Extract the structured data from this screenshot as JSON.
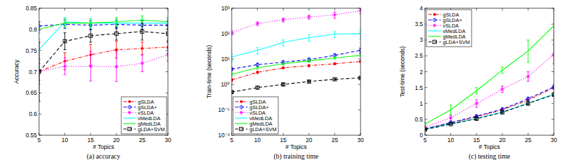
{
  "chart_data": [
    {
      "type": "line",
      "title": "(a)  accuracy",
      "x_label": "# Topics",
      "y_label": "Accuracy",
      "x": [
        5,
        10,
        15,
        20,
        25,
        30
      ],
      "xlim": [
        5,
        30
      ],
      "xticks": [
        5,
        10,
        15,
        20,
        25,
        30
      ],
      "ylim": [
        0.55,
        0.85
      ],
      "yticks": [
        0.55,
        0.6,
        0.65,
        0.7,
        0.75,
        0.8,
        0.85
      ],
      "grid": false,
      "legend": "lower right",
      "series": [
        {
          "name": "gSLDA",
          "color": "#ff0000",
          "line_style": "dashdot",
          "marker": "dot",
          "values": [
            0.7,
            0.725,
            0.74,
            0.752,
            0.755,
            0.758
          ],
          "errors": [
            0.02,
            0.02,
            0.025,
            0.02,
            0.015,
            0.015
          ]
        },
        {
          "name": "gSLDA+",
          "color": "#0000ff",
          "line_style": "dashed",
          "marker": "diamond",
          "values": [
            0.808,
            0.812,
            0.81,
            0.812,
            0.81,
            0.81
          ],
          "errors": [
            0.01,
            0.01,
            0.01,
            0.01,
            0.01,
            0.01
          ]
        },
        {
          "name": "vSLDA",
          "color": "#ff00ff",
          "line_style": "dotted",
          "marker": "star",
          "values": [
            0.7,
            0.713,
            0.713,
            0.712,
            0.72,
            0.74
          ],
          "errors": [
            0.03,
            0.02,
            0.035,
            0.035,
            0.02,
            0.015
          ]
        },
        {
          "name": "vMedLDA",
          "color": "#00ffff",
          "line_style": "solid",
          "marker": "none",
          "values": [
            0.752,
            0.818,
            0.815,
            0.815,
            0.815,
            0.815
          ],
          "errors": [
            0.025,
            0.01,
            0.01,
            0.01,
            0.01,
            0.01
          ]
        },
        {
          "name": "gMedLDA",
          "color": "#00ff00",
          "line_style": "solid",
          "marker": "none",
          "values": [
            0.8,
            0.815,
            0.815,
            0.818,
            0.822,
            0.818
          ],
          "errors": [
            0.01,
            0.01,
            0.01,
            0.01,
            0.01,
            0.01
          ]
        },
        {
          "name": "gLDA+SVM",
          "color": "#000000",
          "line_style": "dashed",
          "marker": "square",
          "values": [
            0.7,
            0.772,
            0.785,
            0.79,
            0.795,
            0.79
          ],
          "errors": [
            0.07,
            0.02,
            0.015,
            0.015,
            0.02,
            0.02
          ]
        }
      ]
    },
    {
      "type": "line",
      "title": "(b)  training time",
      "x_label": "# Topics",
      "y_label": "Train-time (seconds)",
      "x": [
        5,
        10,
        15,
        20,
        25,
        30
      ],
      "xlim": [
        5,
        30
      ],
      "xticks": [
        5,
        10,
        15,
        20,
        25,
        30
      ],
      "ylim": [
        0.01,
        1000
      ],
      "log": "y",
      "yticks": [
        {
          "value": 0.01,
          "label": "10⁻²"
        },
        {
          "value": 0.1,
          "label": "10⁻¹"
        },
        {
          "value": 1,
          "label": "10⁰"
        },
        {
          "value": 10,
          "label": "10¹"
        },
        {
          "value": 100,
          "label": "10²"
        },
        {
          "value": 1000,
          "label": "10³"
        }
      ],
      "grid": false,
      "legend": "lower left",
      "series": [
        {
          "name": "gSLDA",
          "color": "#ff0000",
          "line_style": "dashdot",
          "marker": "dot",
          "values": [
            1.5,
            3,
            4.5,
            5.5,
            6.5,
            8
          ],
          "errors": [
            0.2,
            0.3,
            0.4,
            0.5,
            0.6,
            0.7
          ]
        },
        {
          "name": "gSLDA+",
          "color": "#0000ff",
          "line_style": "dashed",
          "marker": "diamond",
          "values": [
            4,
            6,
            7.5,
            9.5,
            14,
            22
          ],
          "errors": [
            0.5,
            0.8,
            1,
            1.5,
            2,
            5
          ]
        },
        {
          "name": "vSLDA",
          "color": "#ff00ff",
          "line_style": "dotted",
          "marker": "star",
          "values": [
            110,
            250,
            350,
            450,
            550,
            800
          ],
          "errors": [
            20,
            40,
            60,
            80,
            150,
            200
          ]
        },
        {
          "name": "vMedLDA",
          "color": "#00ffff",
          "line_style": "solid",
          "marker": "none",
          "values": [
            12,
            22,
            45,
            70,
            95,
            100
          ],
          "errors": [
            4,
            6,
            12,
            20,
            25,
            40
          ]
        },
        {
          "name": "gMedLDA",
          "color": "#00ff00",
          "line_style": "solid",
          "marker": "none",
          "values": [
            2.5,
            4.5,
            6.5,
            8.5,
            11,
            14
          ],
          "errors": [
            0.3,
            0.5,
            0.7,
            1,
            1.2,
            1.5
          ]
        },
        {
          "name": "gLDA+SVM",
          "color": "#000000",
          "line_style": "dashed",
          "marker": "square",
          "values": [
            0.5,
            0.75,
            1,
            1.3,
            1.6,
            1.8
          ],
          "errors": [
            0.04,
            0.08,
            0.1,
            0.1,
            0.1,
            0.15
          ]
        }
      ]
    },
    {
      "type": "line",
      "title": "(c)  testing time",
      "x_label": "# Topics",
      "y_label": "Test-time (seconds)",
      "x": [
        5,
        10,
        15,
        20,
        25,
        30
      ],
      "xlim": [
        5,
        30
      ],
      "xticks": [
        5,
        10,
        15,
        20,
        25,
        30
      ],
      "ylim": [
        0,
        4
      ],
      "yticks": [
        0,
        0.5,
        1,
        1.5,
        2,
        2.5,
        3,
        3.5,
        4
      ],
      "grid": false,
      "legend": "upper left",
      "series": [
        {
          "name": "gSLDA",
          "color": "#ff0000",
          "line_style": "dashdot",
          "marker": "dot",
          "values": [
            0.2,
            0.38,
            0.58,
            0.8,
            1.1,
            1.5
          ],
          "errors": [
            0.02,
            0.03,
            0.03,
            0.04,
            0.05,
            0.05
          ]
        },
        {
          "name": "gSLDA+",
          "color": "#0000ff",
          "line_style": "dashed",
          "marker": "diamond",
          "values": [
            0.2,
            0.4,
            0.6,
            0.82,
            1.15,
            1.52
          ],
          "errors": [
            0.02,
            0.03,
            0.04,
            0.04,
            0.05,
            0.06
          ]
        },
        {
          "name": "vSLDA",
          "color": "#ff00ff",
          "line_style": "dotted",
          "marker": "star",
          "values": [
            0.25,
            0.55,
            1,
            1.45,
            1.85,
            2.55
          ],
          "errors": [
            0.05,
            0.08,
            0.12,
            0.1,
            0.15,
            0.3
          ]
        },
        {
          "name": "vMedLDA",
          "color": "#00ffff",
          "line_style": "solid",
          "marker": "none",
          "values": [
            0.19,
            0.36,
            0.53,
            0.73,
            1.01,
            1.29
          ],
          "errors": [
            0.02,
            0.03,
            0.03,
            0.04,
            0.05,
            0.05
          ]
        },
        {
          "name": "gMedLDA",
          "color": "#00ff00",
          "line_style": "solid",
          "marker": "none",
          "values": [
            0.35,
            0.8,
            1.4,
            2.05,
            2.65,
            3.45
          ],
          "errors": [
            0.05,
            0.15,
            0.1,
            0.1,
            0.35,
            0.6
          ]
        },
        {
          "name": "gLDA+SVM",
          "color": "#000000",
          "line_style": "dashed",
          "marker": "square",
          "values": [
            0.18,
            0.35,
            0.52,
            0.72,
            1,
            1.28
          ],
          "errors": [
            0.02,
            0.02,
            0.03,
            0.03,
            0.04,
            0.05
          ]
        }
      ]
    }
  ]
}
